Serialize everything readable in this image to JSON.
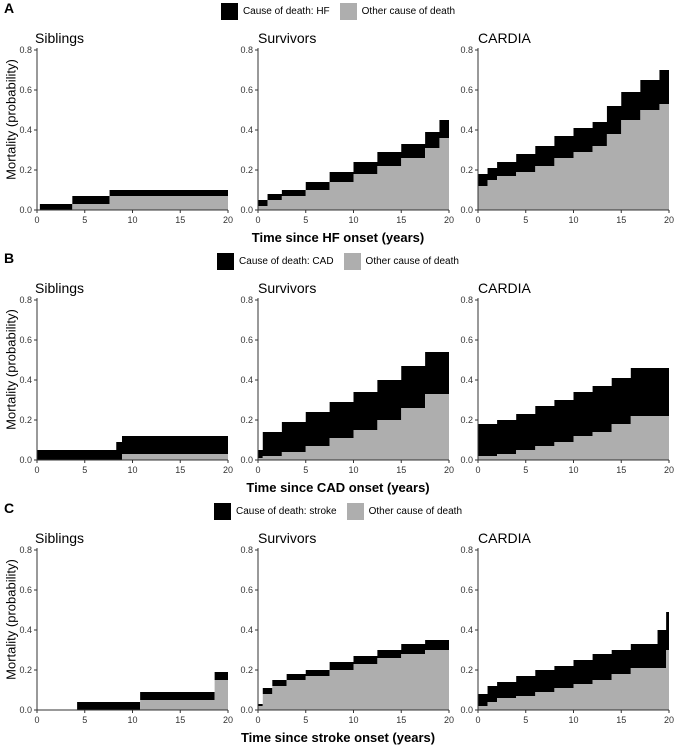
{
  "colors": {
    "cause": "#000000",
    "other": "#aeaeae",
    "axis": "#333333"
  },
  "axes": {
    "ylabel": "Mortality (probability)",
    "x_ticks": [
      "0",
      "5",
      "10",
      "15",
      "20"
    ],
    "y_ticks": [
      "0.0",
      "0.2",
      "0.4",
      "0.6",
      "0.8"
    ]
  },
  "legend": {
    "other_label": "Other cause of death"
  },
  "panels": [
    {
      "label": "A",
      "cause_label": "Cause of death: HF",
      "xlabel": "Time since HF onset (years)"
    },
    {
      "label": "B",
      "cause_label": "Cause of death: CAD",
      "xlabel": "Time since CAD onset (years)"
    },
    {
      "label": "C",
      "cause_label": "Cause of death: stroke",
      "xlabel": "Time since stroke onset (years)"
    }
  ],
  "facets": [
    "Siblings",
    "Survivors",
    "CARDIA"
  ],
  "chart_data": [
    {
      "type": "area",
      "panel": "A",
      "xlim": [
        0,
        20
      ],
      "ylim": [
        0,
        0.8
      ],
      "stacked": true,
      "facets": [
        {
          "name": "Siblings",
          "x": [
            0.3,
            3.7,
            7.6,
            20
          ],
          "series": [
            {
              "name": "Other cause of death",
              "values": [
                0.0,
                0.03,
                0.07,
                0.07
              ]
            },
            {
              "name": "Cause of death: HF",
              "values": [
                0.03,
                0.07,
                0.1,
                0.1
              ]
            }
          ]
        },
        {
          "name": "Survivors",
          "x": [
            0,
            1,
            2.5,
            5,
            7.5,
            10,
            12.5,
            15,
            17.5,
            19,
            20
          ],
          "series": [
            {
              "name": "Other cause of death",
              "values": [
                0.02,
                0.05,
                0.07,
                0.1,
                0.14,
                0.18,
                0.22,
                0.26,
                0.31,
                0.36,
                0.36
              ]
            },
            {
              "name": "Cause of death: HF",
              "values": [
                0.05,
                0.08,
                0.1,
                0.14,
                0.19,
                0.24,
                0.29,
                0.33,
                0.39,
                0.45,
                0.46
              ]
            }
          ]
        },
        {
          "name": "CARDIA",
          "x": [
            0,
            1,
            2,
            4,
            6,
            8,
            10,
            12,
            13.5,
            15,
            17,
            19,
            20
          ],
          "series": [
            {
              "name": "Other cause of death",
              "values": [
                0.12,
                0.15,
                0.17,
                0.19,
                0.22,
                0.26,
                0.29,
                0.32,
                0.38,
                0.45,
                0.5,
                0.53,
                0.55
              ]
            },
            {
              "name": "Cause of death: HF",
              "values": [
                0.18,
                0.21,
                0.24,
                0.28,
                0.32,
                0.37,
                0.41,
                0.44,
                0.52,
                0.59,
                0.65,
                0.7,
                0.73
              ]
            }
          ]
        }
      ]
    },
    {
      "type": "area",
      "panel": "B",
      "xlim": [
        0,
        20
      ],
      "ylim": [
        0,
        0.8
      ],
      "stacked": true,
      "facets": [
        {
          "name": "Siblings",
          "x": [
            0,
            8.3,
            8.9,
            20
          ],
          "series": [
            {
              "name": "Other cause of death",
              "values": [
                0.0,
                0.0,
                0.03,
                0.03
              ]
            },
            {
              "name": "Cause of death: CAD",
              "values": [
                0.05,
                0.09,
                0.12,
                0.12
              ]
            }
          ]
        },
        {
          "name": "Survivors",
          "x": [
            0,
            0.5,
            2.5,
            5,
            7.5,
            10,
            12.5,
            15,
            17.5,
            20
          ],
          "series": [
            {
              "name": "Other cause of death",
              "values": [
                0.01,
                0.02,
                0.04,
                0.07,
                0.11,
                0.15,
                0.2,
                0.26,
                0.33,
                0.39
              ]
            },
            {
              "name": "Cause of death: CAD",
              "values": [
                0.05,
                0.14,
                0.19,
                0.24,
                0.29,
                0.34,
                0.4,
                0.47,
                0.54,
                0.61
              ]
            }
          ]
        },
        {
          "name": "CARDIA",
          "x": [
            0,
            2,
            4,
            6,
            8,
            10,
            12,
            14,
            16,
            20
          ],
          "series": [
            {
              "name": "Other cause of death",
              "values": [
                0.02,
                0.03,
                0.05,
                0.07,
                0.09,
                0.12,
                0.14,
                0.18,
                0.22,
                0.22
              ]
            },
            {
              "name": "Cause of death: CAD",
              "values": [
                0.18,
                0.2,
                0.23,
                0.27,
                0.3,
                0.34,
                0.37,
                0.41,
                0.46,
                0.46
              ]
            }
          ]
        }
      ]
    },
    {
      "type": "area",
      "panel": "C",
      "xlim": [
        0,
        20
      ],
      "ylim": [
        0,
        0.8
      ],
      "stacked": true,
      "facets": [
        {
          "name": "Siblings",
          "x": [
            4.2,
            10.8,
            18.6,
            20
          ],
          "series": [
            {
              "name": "Other cause of death",
              "values": [
                0.0,
                0.05,
                0.15,
                0.15
              ]
            },
            {
              "name": "Cause of death: stroke",
              "values": [
                0.04,
                0.09,
                0.19,
                0.19
              ]
            }
          ]
        },
        {
          "name": "Survivors",
          "x": [
            0,
            0.5,
            1.5,
            3,
            5,
            7.5,
            10,
            12.5,
            15,
            17.5,
            20
          ],
          "series": [
            {
              "name": "Other cause of death",
              "values": [
                0.02,
                0.08,
                0.12,
                0.15,
                0.17,
                0.2,
                0.23,
                0.26,
                0.28,
                0.3,
                0.32
              ]
            },
            {
              "name": "Cause of death: stroke",
              "values": [
                0.03,
                0.11,
                0.15,
                0.18,
                0.2,
                0.24,
                0.27,
                0.3,
                0.33,
                0.35,
                0.38
              ]
            }
          ]
        },
        {
          "name": "CARDIA",
          "x": [
            0,
            1,
            2,
            4,
            6,
            8,
            10,
            12,
            14,
            16,
            18.8,
            19.7,
            20
          ],
          "series": [
            {
              "name": "Other cause of death",
              "values": [
                0.02,
                0.04,
                0.06,
                0.07,
                0.09,
                0.11,
                0.13,
                0.15,
                0.18,
                0.21,
                0.21,
                0.3,
                0.3
              ]
            },
            {
              "name": "Cause of death: stroke",
              "values": [
                0.08,
                0.12,
                0.14,
                0.17,
                0.2,
                0.22,
                0.25,
                0.28,
                0.3,
                0.33,
                0.4,
                0.49,
                0.49
              ]
            }
          ]
        }
      ]
    }
  ]
}
